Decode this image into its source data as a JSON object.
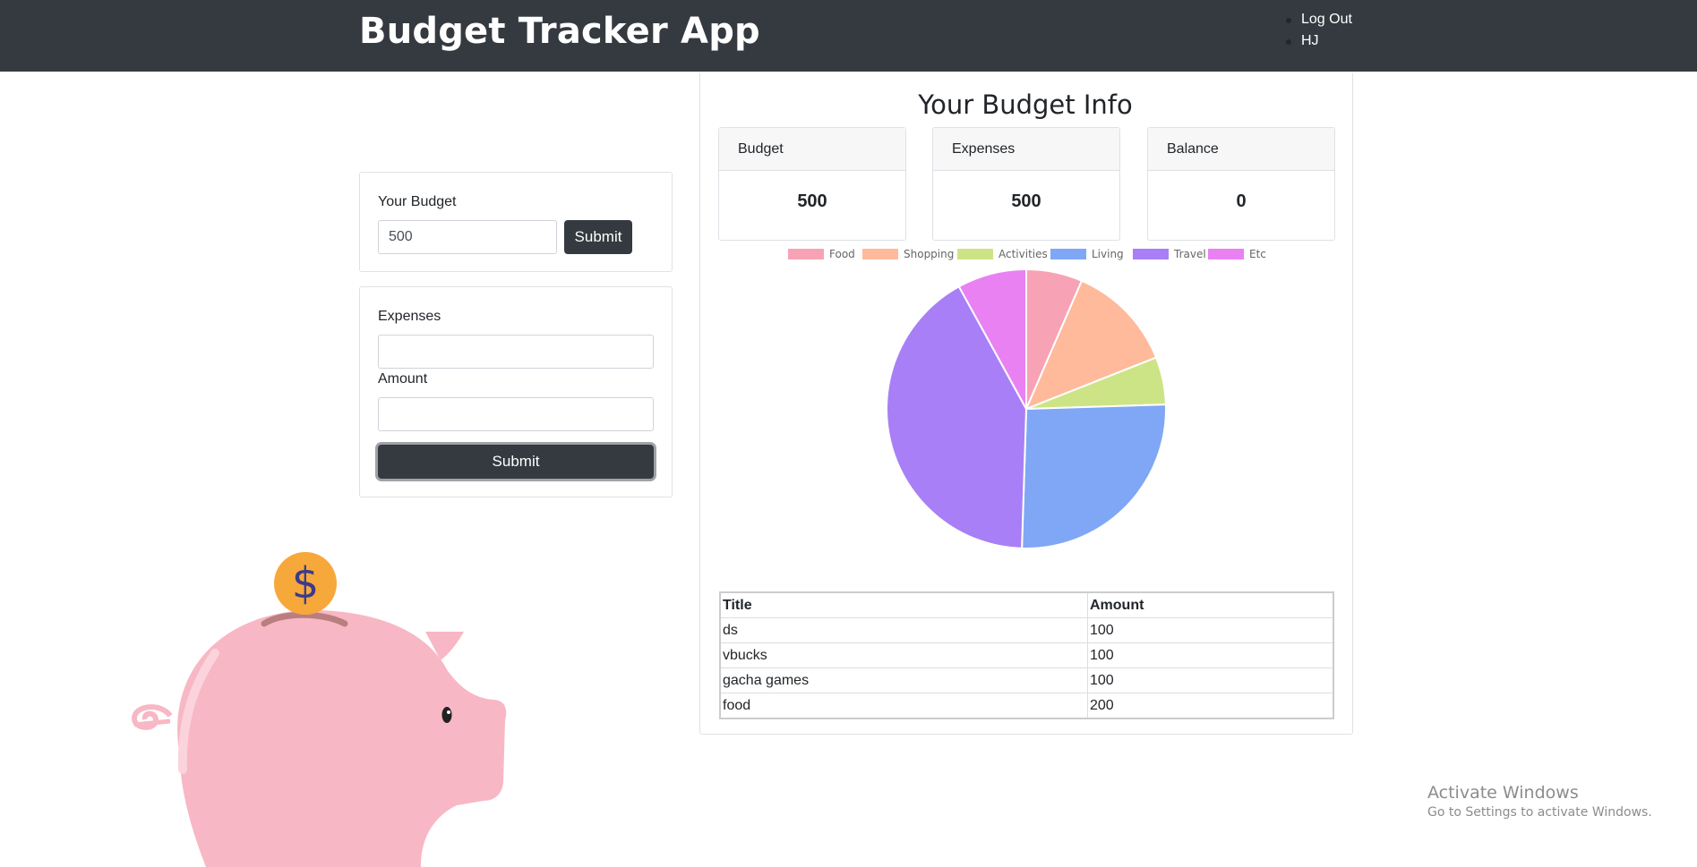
{
  "header": {
    "title": "Budget Tracker App",
    "nav": [
      {
        "label": "Log Out"
      },
      {
        "label": "HJ"
      }
    ]
  },
  "budget_form": {
    "label": "Your Budget",
    "value": "500",
    "submit_label": "Submit"
  },
  "expense_form": {
    "expenses_label": "Expenses",
    "expenses_value": "",
    "amount_label": "Amount",
    "amount_value": "",
    "submit_label": "Submit"
  },
  "info": {
    "title": "Your Budget Info",
    "cards": [
      {
        "label": "Budget",
        "value": "500"
      },
      {
        "label": "Expenses",
        "value": "500"
      },
      {
        "label": "Balance",
        "value": "0"
      }
    ]
  },
  "chart_data": {
    "type": "pie",
    "categories": [
      "Food",
      "Shopping",
      "Activities",
      "Living",
      "Travel",
      "Etc"
    ],
    "values": [
      6.5,
      12.5,
      5.5,
      26,
      41.5,
      8
    ],
    "colors": [
      "#f7a3b5",
      "#feba9b",
      "#cde486",
      "#7fa7f6",
      "#a87ff6",
      "#e981f3"
    ],
    "legend_position": "top"
  },
  "table": {
    "headers": [
      "Title",
      "Amount"
    ],
    "rows": [
      [
        "ds",
        "100"
      ],
      [
        "vbucks",
        "100"
      ],
      [
        "gacha games",
        "100"
      ],
      [
        "food",
        "200"
      ]
    ]
  },
  "decoration": {
    "coin_symbol": "$",
    "colors": {
      "pig": "#f8b7c4",
      "coin": "#f7a83b",
      "coin_symbol": "#3b3b8c",
      "navbar": "#343a40"
    }
  },
  "watermark": {
    "line1": "Activate Windows",
    "line2": "Go to Settings to activate Windows."
  }
}
